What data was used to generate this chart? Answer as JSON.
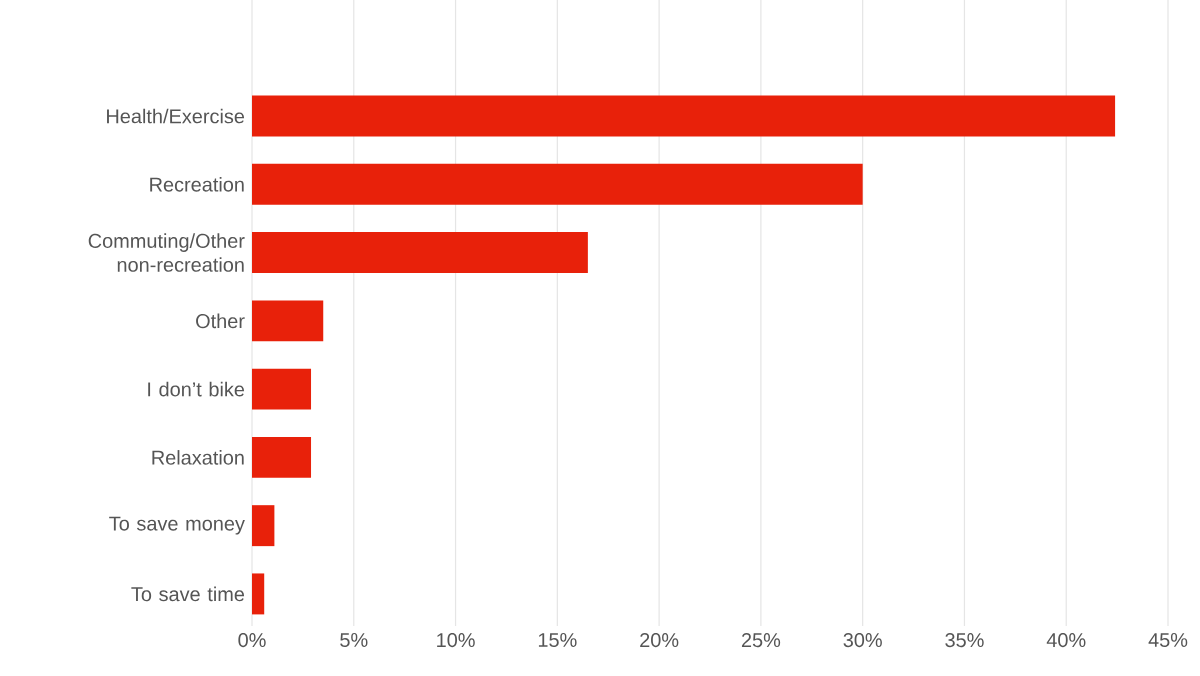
{
  "chart_data": {
    "type": "bar",
    "orientation": "horizontal",
    "categories": [
      "Health/Exercise",
      "Recreation",
      "Commuting/Other non-recreation",
      "Other",
      "I don’t bike",
      "Relaxation",
      "To save money",
      "To save time"
    ],
    "values": [
      42.4,
      30,
      16.5,
      3.5,
      2.9,
      2.9,
      1.1,
      0.6
    ],
    "color": "#e8210a",
    "xlim": [
      0,
      45
    ],
    "xticks": [
      {
        "value": 0,
        "label": "0%"
      },
      {
        "value": 5,
        "label": "5%"
      },
      {
        "value": 10,
        "label": "10%"
      },
      {
        "value": 15,
        "label": "15%"
      },
      {
        "value": 20,
        "label": "20%"
      },
      {
        "value": 25,
        "label": "25%"
      },
      {
        "value": 30,
        "label": "30%"
      },
      {
        "value": 35,
        "label": "35%"
      },
      {
        "value": 40,
        "label": "40%"
      },
      {
        "value": 45,
        "label": "45%"
      }
    ],
    "grid": "x"
  }
}
